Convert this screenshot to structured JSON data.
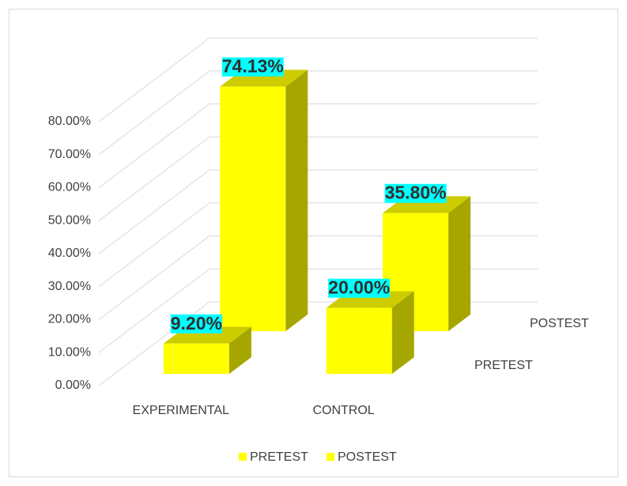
{
  "chart_data": {
    "type": "bar3d",
    "categories": [
      "EXPERIMENTAL",
      "CONTROL"
    ],
    "series": [
      {
        "name": "PRETEST",
        "color": "#ffff00",
        "values": [
          9.2,
          20.0
        ],
        "value_labels": [
          "9.20%",
          "20.00%"
        ]
      },
      {
        "name": "POSTEST",
        "color": "#ffff00",
        "values": [
          74.13,
          35.8
        ],
        "value_labels": [
          "74.13%",
          "35.80%"
        ]
      }
    ],
    "ylim": [
      0,
      80
    ],
    "yticks": [
      {
        "value": 0,
        "label": "0.00%"
      },
      {
        "value": 10,
        "label": "10.00%"
      },
      {
        "value": 20,
        "label": "20.00%"
      },
      {
        "value": 30,
        "label": "30.00%"
      },
      {
        "value": 40,
        "label": "40.00%"
      },
      {
        "value": 50,
        "label": "50.00%"
      },
      {
        "value": 60,
        "label": "60.00%"
      },
      {
        "value": 70,
        "label": "70.00%"
      },
      {
        "value": 80,
        "label": "80.00%"
      }
    ],
    "grid": true,
    "legend": "bottom"
  }
}
